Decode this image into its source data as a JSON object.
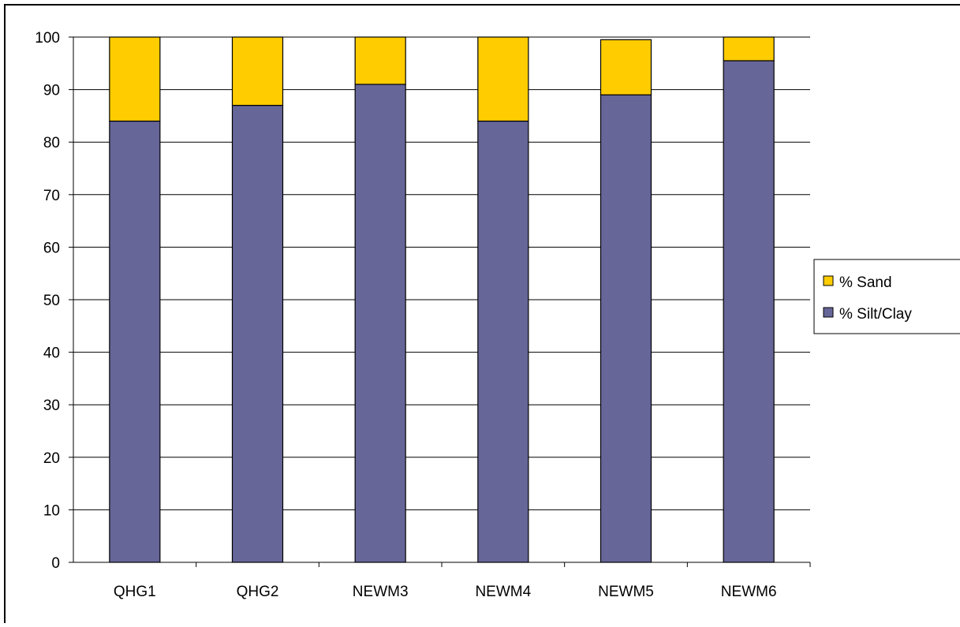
{
  "chart_data": {
    "type": "bar",
    "stacked": true,
    "categories": [
      "QHG1",
      "QHG2",
      "NEWM3",
      "NEWM4",
      "NEWM5",
      "NEWM6"
    ],
    "series": [
      {
        "name": "% Silt/Clay",
        "color": "#666699",
        "values": [
          84,
          87,
          91,
          84,
          89,
          95.5
        ]
      },
      {
        "name": "% Sand",
        "color": "#FFCC00",
        "values": [
          16,
          13,
          9,
          16,
          10.5,
          4.5
        ]
      }
    ],
    "legend_order": [
      "% Sand",
      "% Silt/Clay"
    ],
    "ylim": [
      0,
      100
    ],
    "yticks": [
      0,
      10,
      20,
      30,
      40,
      50,
      60,
      70,
      80,
      90,
      100
    ],
    "grid": true,
    "legend_position": "right",
    "title": "",
    "xlabel": "",
    "ylabel": ""
  }
}
